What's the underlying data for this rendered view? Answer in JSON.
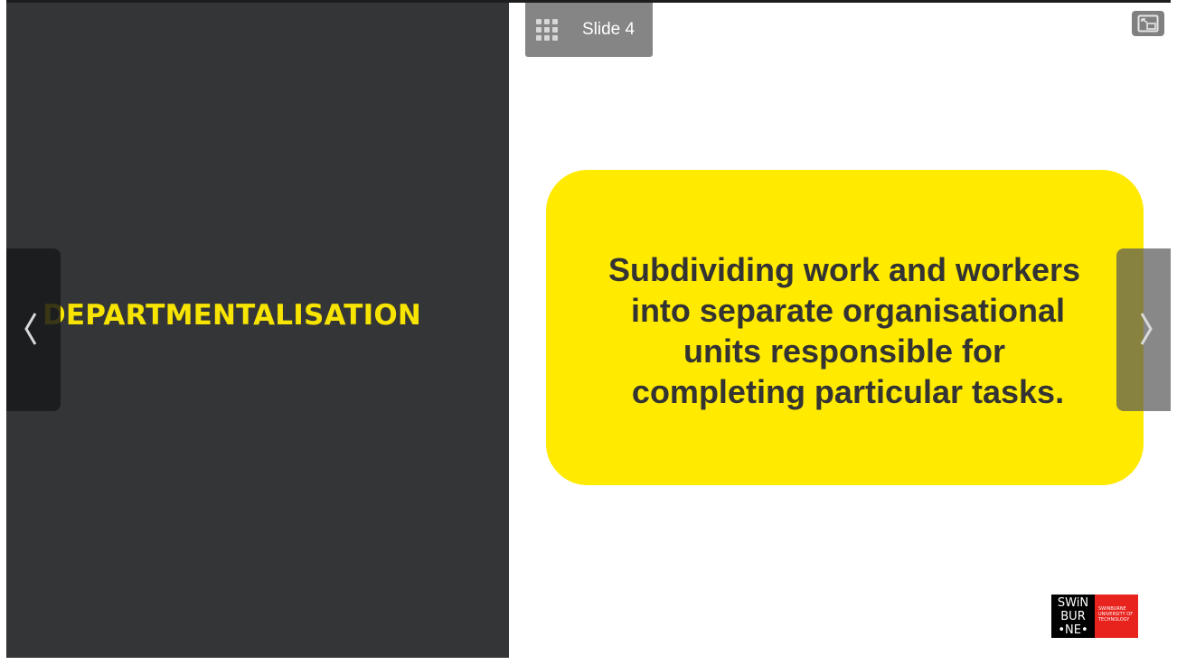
{
  "left_panel": {
    "heading": "DEPARTMENTALISATION"
  },
  "nav": {
    "slide_label": "Slide 4"
  },
  "callout": {
    "line1": "Subdividing work and workers",
    "line2": "into separate organisational",
    "line3": "units responsible for",
    "line4": "completing particular tasks."
  },
  "logo": {
    "line1": "SWiN",
    "line2": "BUR",
    "line3": "•NE•",
    "sub1": "SWINBURNE",
    "sub2": "UNIVERSITY OF",
    "sub3": "TECHNOLOGY"
  },
  "colors": {
    "accent_yellow": "#ffea00",
    "heading_yellow": "#f7e400",
    "panel_dark": "#343537",
    "logo_red": "#e8221c"
  },
  "icons": {
    "menu": "grid-icon",
    "expand": "expand-icon",
    "prev": "chevron-left-icon",
    "next": "chevron-right-icon"
  }
}
